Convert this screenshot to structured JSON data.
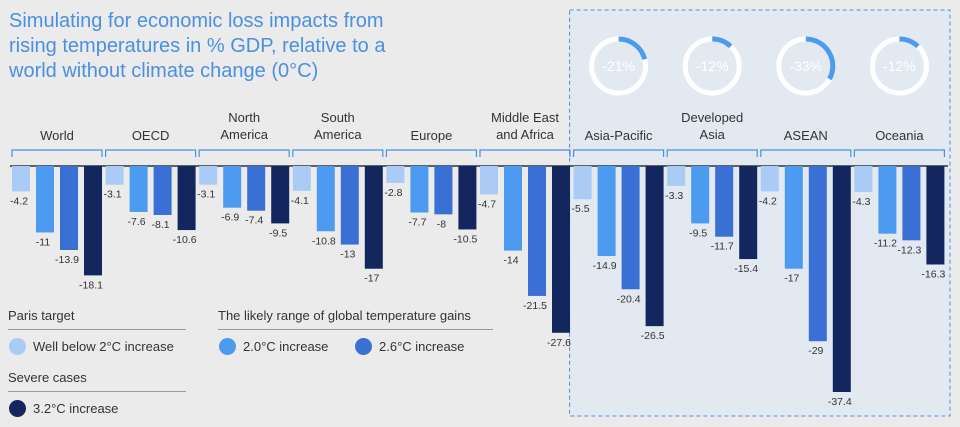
{
  "title_lines": [
    "Simulating for economic loss impacts from",
    "rising temperatures in % GDP, relative to a",
    "world without climate change (0°C)"
  ],
  "colors": {
    "well_below_2": "#a9cbf5",
    "c2_0": "#4d9bf0",
    "c2_6": "#3a6fd3",
    "c3_2": "#13275e",
    "title": "#4a90e2",
    "highlight_bg": "#e3e9f1",
    "highlight_border": "#4a90e2"
  },
  "legend": {
    "paris_heading": "Paris target",
    "paris_item": "Well below 2°C increase",
    "likely_heading": "The likely range of global temperature gains",
    "likely_items": [
      "2.0°C increase",
      "2.6°C increase"
    ],
    "severe_heading": "Severe cases",
    "severe_item": "3.2°C increase"
  },
  "donuts": [
    {
      "label": "-21%",
      "value": 21
    },
    {
      "label": "-12%",
      "value": 12
    },
    {
      "label": "-33%",
      "value": 33
    },
    {
      "label": "-12%",
      "value": 12
    }
  ],
  "chart_data": {
    "type": "bar",
    "title": "Simulating for economic loss impacts from rising temperatures in % GDP, relative to a world without climate change (0°C)",
    "categories": [
      "World",
      "OECD",
      "North America",
      "South America",
      "Europe",
      "Middle East and Africa",
      "Asia-Pacific",
      "Developed Asia",
      "ASEAN",
      "Oceania"
    ],
    "category_lines": [
      [
        "World"
      ],
      [
        "OECD"
      ],
      [
        "North",
        "America"
      ],
      [
        "South",
        "America"
      ],
      [
        "Europe"
      ],
      [
        "Middle East",
        "and Africa"
      ],
      [
        "Asia-Pacific"
      ],
      [
        "Developed",
        "Asia"
      ],
      [
        "ASEAN"
      ],
      [
        "Oceania"
      ]
    ],
    "series": [
      {
        "name": "Well below 2°C increase",
        "values": [
          -4.2,
          -3.1,
          -3.1,
          -4.1,
          -2.8,
          -4.7,
          -5.5,
          -3.3,
          -4.2,
          -4.3
        ]
      },
      {
        "name": "2.0°C increase",
        "values": [
          -11,
          -7.6,
          -6.9,
          -10.8,
          -7.7,
          -14,
          -14.9,
          -9.5,
          -17,
          -11.2
        ]
      },
      {
        "name": "2.6°C increase",
        "values": [
          -13.9,
          -8.1,
          -7.4,
          -13,
          -8,
          -21.5,
          -20.4,
          -11.7,
          -29,
          -12.3
        ]
      },
      {
        "name": "3.2°C increase",
        "values": [
          -18.1,
          -10.6,
          -9.5,
          -17,
          -10.5,
          -27.6,
          -26.5,
          -15.4,
          -37.4,
          -16.3
        ]
      }
    ],
    "value_labels": [
      [
        "-4.2",
        "-3.1",
        "-3.1",
        "-4.1",
        "-2.8",
        "-4.7",
        "-5.5",
        "-3.3",
        "-4.2",
        "-4.3"
      ],
      [
        "-11",
        "-7.6",
        "-6.9",
        "-10.8",
        "-7.7",
        "-14",
        "-14.9",
        "-9.5",
        "-17",
        "-11.2"
      ],
      [
        "-13.9",
        "-8.1",
        "-7.4",
        "-13",
        "-8",
        "-21.5",
        "-20.4",
        "-11.7",
        "-29",
        "-12.3"
      ],
      [
        "-18.1",
        "-10.6",
        "-9.5",
        "-17",
        "-10.5",
        "-27.6",
        "-26.5",
        "-15.4",
        "-37.4",
        "-16.3"
      ]
    ],
    "ylim": [
      -38,
      0
    ],
    "highlighted_categories": [
      "Asia-Pacific",
      "Developed Asia",
      "ASEAN",
      "Oceania"
    ],
    "legend_placement": "bottom-left"
  }
}
